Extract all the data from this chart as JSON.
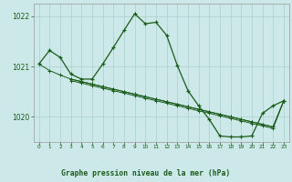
{
  "title": "Graphe pression niveau de la mer (hPa)",
  "bg_color": "#cce8e8",
  "grid_color": "#aacfcf",
  "line_color": "#1a5c1a",
  "label_color": "#1a5c1a",
  "bottom_bar_color": "#5a9a5a",
  "bottom_bg_color": "#cce8e8",
  "main_x": [
    0,
    1,
    2,
    3,
    4,
    5,
    6,
    7,
    8,
    9,
    10,
    11,
    12,
    13,
    14,
    15,
    16,
    17,
    18,
    19,
    20,
    21,
    22,
    23
  ],
  "main_y": [
    1021.05,
    1021.32,
    1021.18,
    1020.85,
    1020.75,
    1020.75,
    1021.05,
    1021.38,
    1021.72,
    1022.05,
    1021.85,
    1021.88,
    1021.62,
    1021.02,
    1020.52,
    1020.22,
    1019.95,
    1019.62,
    1019.6,
    1019.6,
    1019.62,
    1020.07,
    1020.22,
    1020.32
  ],
  "flat1_x": [
    0,
    1,
    2,
    3,
    4,
    5,
    6,
    7,
    8,
    9,
    10,
    11,
    12,
    13,
    14,
    15,
    16,
    17,
    18,
    19,
    20,
    21,
    22,
    23
  ],
  "flat1_y": [
    1021.05,
    1020.92,
    1020.83,
    1020.75,
    1020.7,
    1020.65,
    1020.6,
    1020.55,
    1020.5,
    1020.45,
    1020.4,
    1020.35,
    1020.3,
    1020.25,
    1020.2,
    1020.15,
    1020.1,
    1020.05,
    1020.0,
    1019.95,
    1019.9,
    1019.85,
    1019.8,
    1020.32
  ],
  "flat2_x": [
    3,
    4,
    5,
    6,
    7,
    8,
    9,
    10,
    11,
    12,
    13,
    14,
    15,
    16,
    17,
    18,
    19,
    20,
    21,
    22,
    23
  ],
  "flat2_y": [
    1020.75,
    1020.7,
    1020.65,
    1020.6,
    1020.55,
    1020.5,
    1020.45,
    1020.4,
    1020.35,
    1020.3,
    1020.25,
    1020.2,
    1020.15,
    1020.1,
    1020.05,
    1020.0,
    1019.95,
    1019.9,
    1019.85,
    1019.8,
    1020.32
  ],
  "flat3_x": [
    3,
    4,
    5,
    6,
    7,
    8,
    9,
    10,
    11,
    12,
    13,
    14,
    15,
    16,
    17,
    18,
    19,
    20,
    21,
    22,
    23
  ],
  "flat3_y": [
    1020.72,
    1020.67,
    1020.62,
    1020.57,
    1020.52,
    1020.47,
    1020.42,
    1020.37,
    1020.32,
    1020.27,
    1020.22,
    1020.17,
    1020.12,
    1020.07,
    1020.02,
    1019.97,
    1019.92,
    1019.87,
    1019.82,
    1019.77,
    1020.32
  ],
  "ylim": [
    1019.5,
    1022.25
  ],
  "yticks": [
    1020,
    1021,
    1022
  ],
  "xlim": [
    -0.5,
    23.5
  ],
  "xticks": [
    0,
    1,
    2,
    3,
    4,
    5,
    6,
    7,
    8,
    9,
    10,
    11,
    12,
    13,
    14,
    15,
    16,
    17,
    18,
    19,
    20,
    21,
    22,
    23
  ]
}
